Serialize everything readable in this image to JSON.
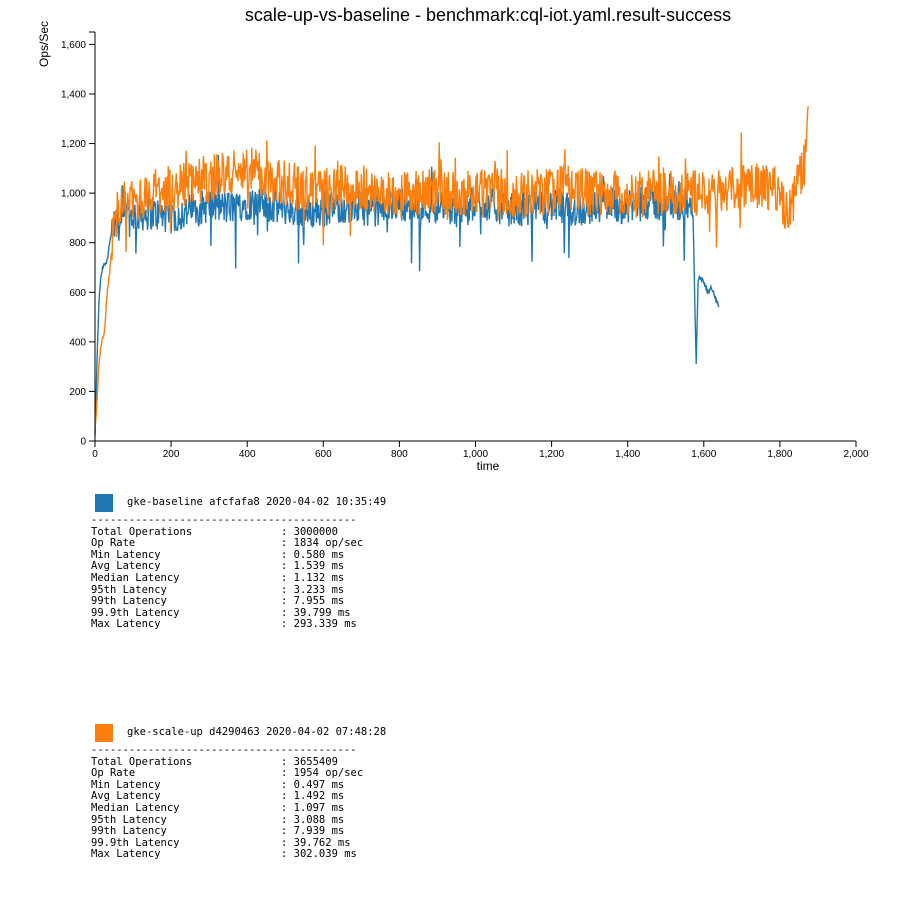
{
  "chart_data": {
    "type": "line",
    "title": "scale-up-vs-baseline - benchmark:cql-iot.yaml.result-success",
    "xlabel": "time",
    "ylabel": "Ops/Sec",
    "xlim": [
      0,
      2000
    ],
    "ylim": [
      0,
      1650
    ],
    "x_ticks": [
      0,
      200,
      400,
      600,
      800,
      1000,
      1200,
      1400,
      1600,
      1800,
      2000
    ],
    "x_tick_labels": [
      "0",
      "200",
      "400",
      "600",
      "800",
      "1,000",
      "1,200",
      "1,400",
      "1,600",
      "1,800",
      "2,000"
    ],
    "y_ticks": [
      0,
      200,
      400,
      600,
      800,
      1000,
      1200,
      1400,
      1600
    ],
    "y_tick_labels": [
      "0",
      "200",
      "400",
      "600",
      "800",
      "1,000",
      "1,200",
      "1,400",
      "1,600"
    ],
    "grid": false,
    "series": [
      {
        "name": "gke-baseline",
        "color": "#1f77b4",
        "x": [
          0,
          5,
          10,
          15,
          20,
          25,
          30,
          35,
          40,
          45,
          50,
          60,
          70,
          80,
          100,
          150,
          200,
          250,
          300,
          350,
          400,
          450,
          500,
          550,
          600,
          650,
          700,
          750,
          800,
          850,
          900,
          950,
          1000,
          1050,
          1100,
          1150,
          1200,
          1250,
          1300,
          1350,
          1400,
          1450,
          1500,
          1550,
          1570,
          1575,
          1580,
          1585,
          1590,
          1600,
          1610,
          1620,
          1630,
          1640
        ],
        "y": [
          20,
          300,
          550,
          650,
          700,
          720,
          710,
          760,
          820,
          840,
          860,
          880,
          870,
          900,
          910,
          920,
          900,
          930,
          950,
          940,
          960,
          950,
          940,
          920,
          930,
          950,
          940,
          930,
          960,
          940,
          950,
          930,
          960,
          950,
          930,
          940,
          950,
          930,
          940,
          960,
          940,
          960,
          950,
          960,
          930,
          700,
          320,
          640,
          660,
          640,
          600,
          620,
          580,
          540
        ]
      },
      {
        "name": "gke-scale-up",
        "color": "#ff7f0e",
        "x": [
          0,
          5,
          10,
          15,
          20,
          25,
          30,
          35,
          40,
          45,
          50,
          60,
          70,
          80,
          100,
          150,
          200,
          250,
          300,
          350,
          400,
          450,
          500,
          550,
          600,
          650,
          700,
          750,
          800,
          850,
          900,
          950,
          1000,
          1050,
          1100,
          1150,
          1200,
          1250,
          1300,
          1350,
          1400,
          1450,
          1500,
          1550,
          1600,
          1650,
          1700,
          1750,
          1800,
          1820,
          1840,
          1850,
          1860,
          1870,
          1875
        ],
        "y": [
          30,
          150,
          300,
          380,
          420,
          440,
          560,
          640,
          700,
          800,
          880,
          920,
          940,
          960,
          980,
          1000,
          1020,
          1050,
          1060,
          1080,
          1100,
          1060,
          1040,
          1020,
          1030,
          1040,
          1020,
          1000,
          990,
          1000,
          1010,
          990,
          1000,
          1010,
          990,
          1000,
          1010,
          1020,
          1000,
          1010,
          980,
          1000,
          1010,
          1000,
          1010,
          1000,
          1020,
          1030,
          1010,
          900,
          1000,
          1050,
          1100,
          1150,
          1350
        ]
      }
    ]
  },
  "runs": [
    {
      "header": "gke-baseline afcfafa8 2020-04-02 10:35:49",
      "color": "#1f77b4",
      "separator": "------------------------------------------",
      "stats": [
        {
          "k": "Total Operations",
          "v": ": 3000000"
        },
        {
          "k": "Op Rate",
          "v": ": 1834 op/sec"
        },
        {
          "k": "Min Latency",
          "v": ": 0.580 ms"
        },
        {
          "k": "Avg Latency",
          "v": ": 1.539 ms"
        },
        {
          "k": "Median Latency",
          "v": ": 1.132 ms"
        },
        {
          "k": "95th Latency",
          "v": ": 3.233 ms"
        },
        {
          "k": "99th Latency",
          "v": ": 7.955 ms"
        },
        {
          "k": "99.9th Latency",
          "v": ": 39.799 ms"
        },
        {
          "k": "Max Latency",
          "v": ": 293.339 ms"
        }
      ]
    },
    {
      "header": "gke-scale-up d4290463 2020-04-02 07:48:28",
      "color": "#ff7f0e",
      "separator": "------------------------------------------",
      "stats": [
        {
          "k": "Total Operations",
          "v": ": 3655409"
        },
        {
          "k": "Op Rate",
          "v": ": 1954 op/sec"
        },
        {
          "k": "Min Latency",
          "v": ": 0.497 ms"
        },
        {
          "k": "Avg Latency",
          "v": ": 1.492 ms"
        },
        {
          "k": "Median Latency",
          "v": ": 1.097 ms"
        },
        {
          "k": "95th Latency",
          "v": ": 3.088 ms"
        },
        {
          "k": "99th Latency",
          "v": ": 7.939 ms"
        },
        {
          "k": "99.9th Latency",
          "v": ": 39.762 ms"
        },
        {
          "k": "Max Latency",
          "v": ": 302.039 ms"
        }
      ]
    }
  ]
}
